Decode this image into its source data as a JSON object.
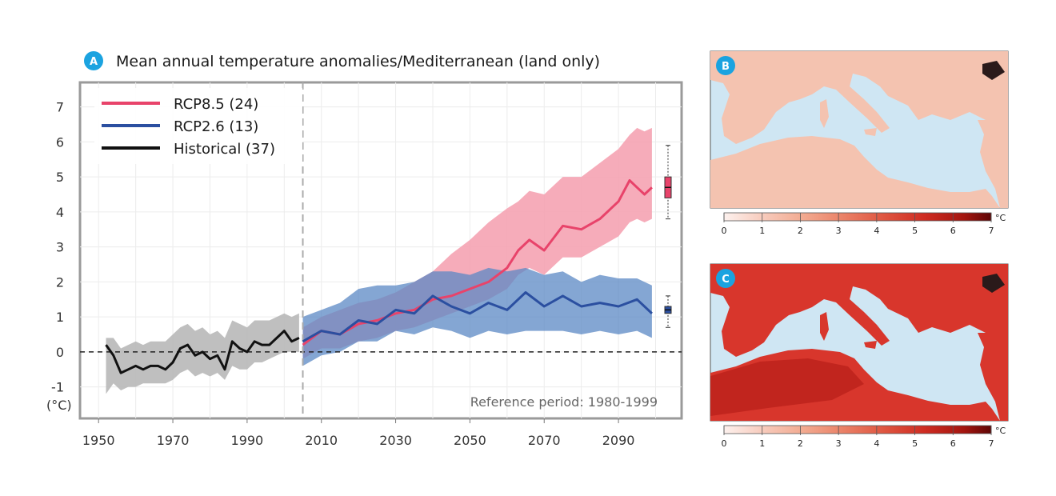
{
  "panel_a": {
    "badge": "A",
    "title": "Mean annual temperature anomalies/Mediterranean (land only)",
    "unit_label": "(°C)",
    "reference_note": "Reference period: 1980-1999"
  },
  "panel_b": {
    "badge": "B"
  },
  "panel_c": {
    "badge": "C"
  },
  "colorbar": {
    "ticks": [
      "0",
      "1",
      "2",
      "3",
      "4",
      "5",
      "6",
      "7"
    ],
    "unit": "°C"
  },
  "colors": {
    "rcp85": "#e8436a",
    "rcp85_band": "#f5a3b2",
    "rcp26": "#2b4fa0",
    "rcp26_band": "#5b88c4",
    "historical": "#111111",
    "historical_band": "#b8b8b8",
    "badge": "#1ba3e0",
    "sea": "#cfe6f3"
  },
  "chart_data": {
    "type": "line",
    "xlabel": "",
    "ylabel": "(°C)",
    "xlim": [
      1945,
      2107
    ],
    "ylim": [
      -1.9,
      7.7
    ],
    "x_ticks": [
      1950,
      1970,
      1990,
      2010,
      2030,
      2050,
      2070,
      2090
    ],
    "y_ticks": [
      -1,
      0,
      1,
      2,
      3,
      4,
      5,
      6,
      7
    ],
    "grid": true,
    "legend_position": "top-left",
    "zero_line": 0,
    "divider_year": 2005,
    "series": [
      {
        "name": "RCP8.5 (24)",
        "color_key": "rcp85",
        "x": [
          2005,
          2010,
          2015,
          2020,
          2025,
          2030,
          2035,
          2040,
          2045,
          2050,
          2055,
          2060,
          2063,
          2066,
          2070,
          2075,
          2080,
          2085,
          2090,
          2093,
          2095,
          2097,
          2099
        ],
        "values": [
          0.2,
          0.6,
          0.5,
          0.8,
          0.9,
          1.1,
          1.2,
          1.5,
          1.6,
          1.8,
          2.0,
          2.4,
          2.9,
          3.2,
          2.9,
          3.6,
          3.5,
          3.8,
          4.3,
          4.9,
          4.7,
          4.5,
          4.7
        ],
        "band_low": [
          -0.2,
          0.1,
          0.1,
          0.3,
          0.4,
          0.6,
          0.7,
          0.9,
          1.1,
          1.3,
          1.5,
          1.8,
          2.2,
          2.4,
          2.2,
          2.7,
          2.7,
          3.0,
          3.3,
          3.7,
          3.8,
          3.7,
          3.8
        ],
        "band_high": [
          0.7,
          1.0,
          1.2,
          1.4,
          1.5,
          1.7,
          2.0,
          2.3,
          2.8,
          3.2,
          3.7,
          4.1,
          4.3,
          4.6,
          4.5,
          5.0,
          5.0,
          5.4,
          5.8,
          6.2,
          6.4,
          6.3,
          6.4
        ]
      },
      {
        "name": "RCP2.6 (13)",
        "color_key": "rcp26",
        "x": [
          2005,
          2010,
          2015,
          2020,
          2025,
          2030,
          2035,
          2040,
          2045,
          2050,
          2055,
          2060,
          2065,
          2070,
          2075,
          2080,
          2085,
          2090,
          2095,
          2099
        ],
        "values": [
          0.3,
          0.6,
          0.5,
          0.9,
          0.8,
          1.2,
          1.1,
          1.6,
          1.3,
          1.1,
          1.4,
          1.2,
          1.7,
          1.3,
          1.6,
          1.3,
          1.4,
          1.3,
          1.5,
          1.1
        ],
        "band_low": [
          -0.4,
          -0.1,
          0.0,
          0.3,
          0.3,
          0.6,
          0.5,
          0.7,
          0.6,
          0.4,
          0.6,
          0.5,
          0.6,
          0.6,
          0.6,
          0.5,
          0.6,
          0.5,
          0.6,
          0.4
        ],
        "band_high": [
          1.0,
          1.2,
          1.4,
          1.8,
          1.9,
          1.9,
          2.0,
          2.3,
          2.3,
          2.2,
          2.4,
          2.3,
          2.4,
          2.2,
          2.3,
          2.0,
          2.2,
          2.1,
          2.1,
          1.9
        ]
      },
      {
        "name": "Historical (37)",
        "color_key": "historical",
        "x": [
          1952,
          1954,
          1956,
          1958,
          1960,
          1962,
          1964,
          1966,
          1968,
          1970,
          1972,
          1974,
          1976,
          1978,
          1980,
          1982,
          1984,
          1986,
          1988,
          1990,
          1992,
          1994,
          1996,
          1998,
          2000,
          2002,
          2004
        ],
        "values": [
          0.2,
          -0.1,
          -0.6,
          -0.5,
          -0.4,
          -0.5,
          -0.4,
          -0.4,
          -0.5,
          -0.3,
          0.1,
          0.2,
          -0.1,
          0.0,
          -0.2,
          -0.1,
          -0.5,
          0.3,
          0.1,
          0.0,
          0.3,
          0.2,
          0.2,
          0.4,
          0.6,
          0.3,
          0.4
        ],
        "band_low": [
          -1.2,
          -0.9,
          -1.1,
          -1.0,
          -1.0,
          -0.9,
          -0.9,
          -0.9,
          -0.9,
          -0.8,
          -0.6,
          -0.5,
          -0.7,
          -0.6,
          -0.7,
          -0.6,
          -0.8,
          -0.4,
          -0.5,
          -0.5,
          -0.3,
          -0.3,
          -0.2,
          -0.1,
          0.0,
          0.0,
          0.0
        ],
        "band_high": [
          0.4,
          0.4,
          0.1,
          0.2,
          0.3,
          0.2,
          0.3,
          0.3,
          0.3,
          0.5,
          0.7,
          0.8,
          0.6,
          0.7,
          0.5,
          0.6,
          0.4,
          0.9,
          0.8,
          0.7,
          0.9,
          0.9,
          0.9,
          1.0,
          1.1,
          1.0,
          1.1
        ]
      }
    ],
    "boxplots": [
      {
        "series": "RCP8.5 (24)",
        "min": 3.8,
        "q1": 4.4,
        "median": 4.7,
        "q3": 5.0,
        "max": 5.9,
        "color_key": "rcp85"
      },
      {
        "series": "RCP2.6 (13)",
        "min": 0.7,
        "q1": 1.1,
        "median": 1.2,
        "q3": 1.3,
        "max": 1.6,
        "color_key": "rcp26"
      }
    ]
  }
}
